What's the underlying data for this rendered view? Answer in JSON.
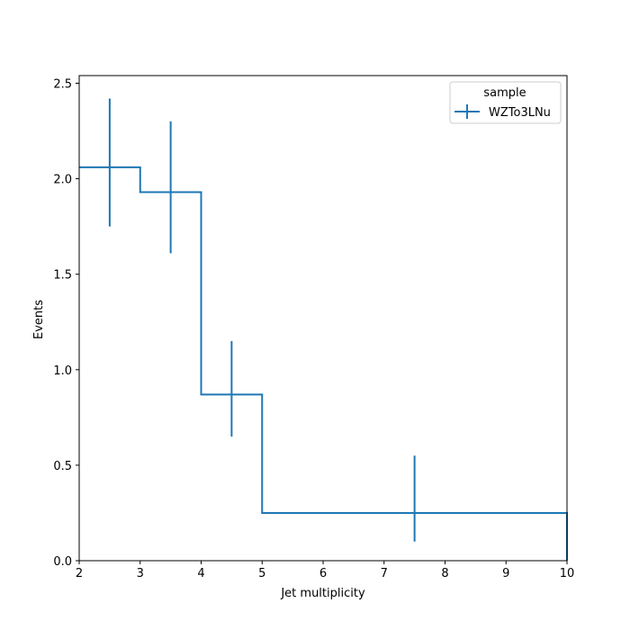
{
  "chart_data": {
    "type": "step",
    "xlabel": "Jet multiplicity",
    "ylabel": "Events",
    "xlim": [
      2,
      10
    ],
    "ylim": [
      0,
      2.54
    ],
    "xticks": [
      2,
      3,
      4,
      5,
      6,
      7,
      8,
      9,
      10
    ],
    "yticks": [
      0.0,
      0.5,
      1.0,
      1.5,
      2.0,
      2.5
    ],
    "ytick_labels": [
      "0.0",
      "0.5",
      "1.0",
      "1.5",
      "2.0",
      "2.5"
    ],
    "grid": false,
    "legend": {
      "title": "sample",
      "position": "top-right"
    },
    "series": [
      {
        "name": "WZTo3LNu",
        "color": "#1f77b4",
        "bin_edges": [
          2,
          3,
          4,
          5,
          10
        ],
        "values": [
          2.06,
          1.93,
          0.87,
          0.25
        ],
        "error_low": [
          1.75,
          1.61,
          0.65,
          0.1
        ],
        "error_high": [
          2.42,
          2.3,
          1.15,
          0.55
        ]
      }
    ]
  }
}
